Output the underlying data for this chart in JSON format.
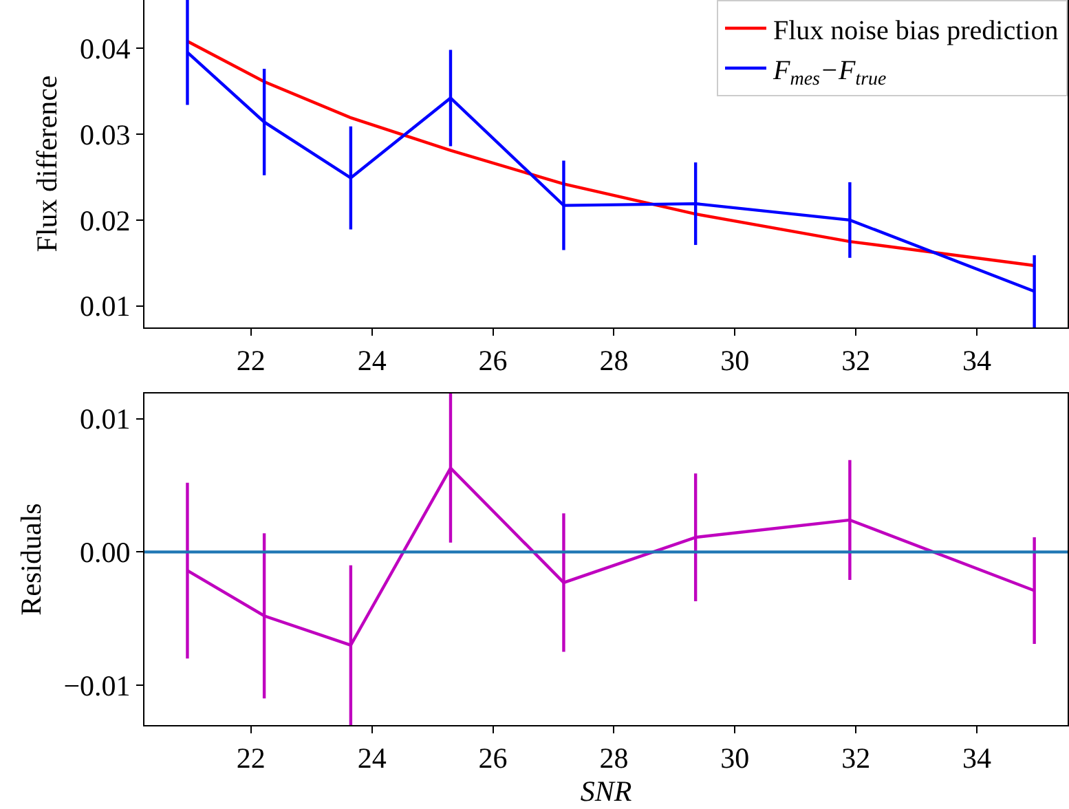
{
  "chart_data": [
    {
      "type": "line",
      "ylabel": "Flux difference",
      "x": [
        20.95,
        22.22,
        23.65,
        25.3,
        27.17,
        29.35,
        31.9,
        34.95
      ],
      "xlim": [
        20.24,
        35.5
      ],
      "xticks": [
        22,
        24,
        26,
        28,
        30,
        32,
        34
      ],
      "ylim": [
        0.0075,
        0.0456
      ],
      "yticks": [
        0.01,
        0.02,
        0.03,
        0.04
      ],
      "legend": "top right",
      "marker": "none",
      "line_style": "solid",
      "series": [
        {
          "name": "Flux noise bias prediction",
          "color": "#ff0000",
          "values": [
            0.0408,
            0.0361,
            0.0319,
            0.0281,
            0.0242,
            0.0207,
            0.0175,
            0.0147
          ]
        },
        {
          "name": "F$_{mes}$−F$_{true}$",
          "color": "#0000ff",
          "values": [
            0.0395,
            0.0314,
            0.0249,
            0.0342,
            0.0217,
            0.0219,
            0.02,
            0.0117
          ],
          "errors": [
            0.0061,
            0.0062,
            0.006,
            0.0056,
            0.0052,
            0.0048,
            0.0044,
            0.0042
          ]
        }
      ]
    },
    {
      "type": "line",
      "ylabel": "Residuals",
      "xlabel": "SNR",
      "x": [
        20.95,
        22.22,
        23.65,
        25.3,
        27.17,
        29.35,
        31.9,
        34.95
      ],
      "xlim": [
        20.24,
        35.5
      ],
      "xticks": [
        22,
        24,
        26,
        28,
        30,
        32,
        34
      ],
      "ylim": [
        -0.013,
        0.0119
      ],
      "yticks": [
        {
          "value": 0.01,
          "label": "0.01"
        },
        {
          "value": 0,
          "label": "0.00"
        },
        {
          "value": -0.01,
          "label": "−0.01"
        }
      ],
      "marker": "none",
      "line_style": "solid",
      "series": [
        {
          "color": "#bf00bf",
          "values": [
            -0.0014,
            -0.0048,
            -0.007,
            0.0063,
            -0.0023,
            0.0011,
            0.0024,
            -0.0029
          ],
          "errors": [
            0.0066,
            0.0062,
            0.006,
            0.0056,
            0.0052,
            0.0048,
            0.0045,
            0.004
          ]
        }
      ],
      "ref_lines": [
        {
          "axis": "y",
          "value": 0,
          "color": "#1f77b4"
        }
      ]
    }
  ]
}
